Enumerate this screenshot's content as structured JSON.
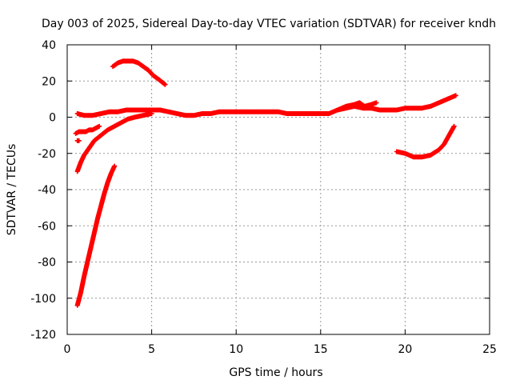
{
  "chart_data": {
    "type": "scatter",
    "title": "Day 003 of 2025, Sidereal Day-to-day VTEC variation (SDTVAR) for receiver kndh",
    "xlabel": "GPS time / hours",
    "ylabel": "SDTVAR / TECUs",
    "xlim": [
      0,
      25
    ],
    "ylim": [
      -120,
      40
    ],
    "x_ticks": [
      0,
      5,
      10,
      15,
      20,
      25
    ],
    "y_ticks": [
      -120,
      -100,
      -80,
      -60,
      -40,
      -20,
      0,
      20,
      40
    ],
    "grid": true,
    "marker_color": "#ff0000",
    "series": [
      {
        "name": "main-band",
        "x": [
          0.6,
          1.0,
          1.5,
          2.0,
          2.5,
          3.0,
          3.5,
          4.0,
          4.5,
          5.0,
          5.5,
          6.0,
          6.5,
          7.0,
          7.5,
          8.0,
          8.5,
          9.0,
          9.5,
          10.0,
          10.5,
          11.0,
          11.5,
          12.0,
          12.5,
          13.0,
          13.5,
          14.0,
          14.5,
          15.0,
          15.5,
          16.0,
          16.5,
          17.0,
          17.5,
          18.0,
          18.5,
          19.0,
          19.5,
          20.0,
          20.5,
          21.0,
          21.5,
          22.0,
          22.5,
          23.0
        ],
        "y": [
          2,
          1,
          1,
          2,
          3,
          3,
          4,
          4,
          4,
          4,
          4,
          3,
          2,
          1,
          1,
          2,
          2,
          3,
          3,
          3,
          3,
          3,
          3,
          3,
          3,
          2,
          2,
          2,
          2,
          2,
          2,
          4,
          5,
          6,
          5,
          5,
          4,
          4,
          4,
          5,
          5,
          5,
          6,
          8,
          10,
          12
        ]
      },
      {
        "name": "wobble",
        "x": [
          16.0,
          16.5,
          17.0,
          17.3,
          17.6,
          18.0,
          18.3
        ],
        "y": [
          4,
          6,
          7,
          8,
          6,
          7,
          8
        ]
      },
      {
        "name": "arc-top",
        "x": [
          2.7,
          3.0,
          3.3,
          3.6,
          3.9,
          4.2,
          4.5,
          4.8,
          5.1,
          5.4,
          5.8
        ],
        "y": [
          28,
          30,
          31,
          31,
          31,
          30,
          28,
          26,
          23,
          21,
          18
        ]
      },
      {
        "name": "steep-rise",
        "x": [
          0.6,
          0.8,
          1.0,
          1.2,
          1.4,
          1.6,
          1.8,
          2.0,
          2.2,
          2.4,
          2.6,
          2.8
        ],
        "y": [
          -104,
          -97,
          -88,
          -80,
          -72,
          -64,
          -56,
          -49,
          -42,
          -36,
          -31,
          -27
        ]
      },
      {
        "name": "curve-rise",
        "x": [
          0.6,
          0.8,
          1.0,
          1.3,
          1.6,
          2.0,
          2.4,
          2.8,
          3.2,
          3.6,
          4.0,
          4.5,
          5.0
        ],
        "y": [
          -30,
          -25,
          -21,
          -17,
          -13,
          -10,
          -7,
          -5,
          -3,
          -1,
          0,
          1,
          2
        ]
      },
      {
        "name": "short-low",
        "x": [
          0.5,
          0.7,
          0.9,
          1.1,
          1.3,
          1.5,
          1.7,
          1.9
        ],
        "y": [
          -9,
          -8,
          -8,
          -8,
          -7,
          -7,
          -6,
          -5
        ]
      },
      {
        "name": "dot",
        "x": [
          0.6,
          0.7
        ],
        "y": [
          -13,
          -13
        ]
      },
      {
        "name": "right-dip",
        "x": [
          19.5,
          20.0,
          20.5,
          21.0,
          21.5,
          22.0,
          22.3,
          22.6,
          22.9
        ],
        "y": [
          -19,
          -20,
          -22,
          -22,
          -21,
          -18,
          -15,
          -10,
          -5
        ]
      }
    ]
  }
}
